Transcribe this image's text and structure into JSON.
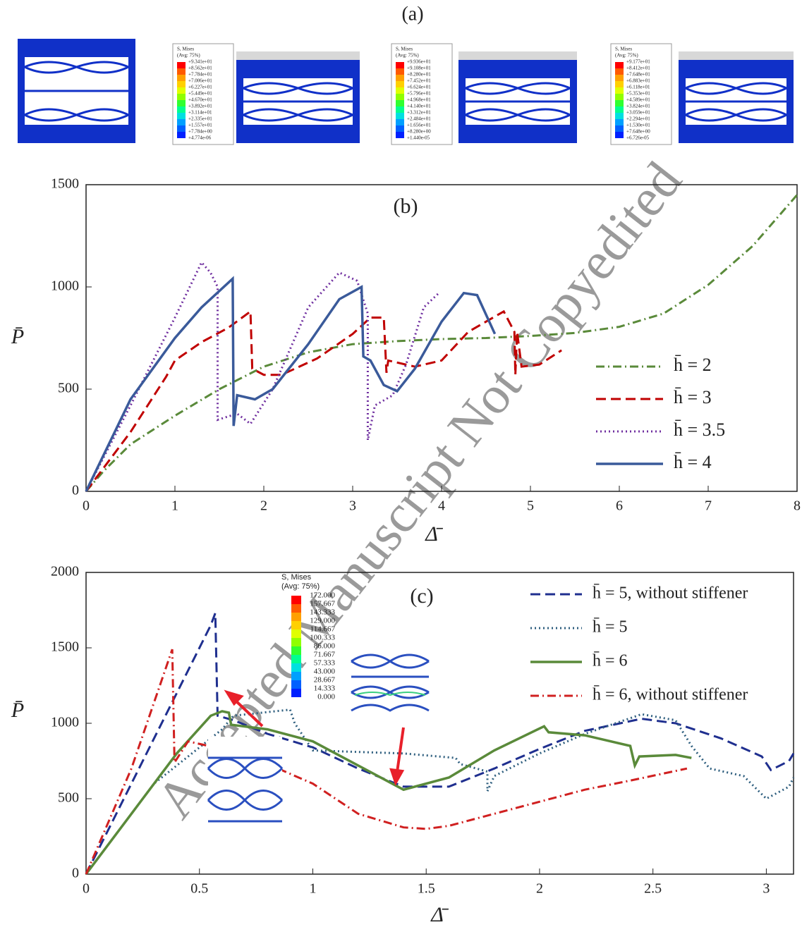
{
  "panel_a": {
    "label": "(a)",
    "legends": [
      {
        "title": "S, Mises",
        "subtitle": "(Avg: 75%)",
        "labels": [
          "+9.341e+01",
          "+8.562e+01",
          "+7.784e+01",
          "+7.006e+01",
          "+6.227e+01",
          "+5.449e+01",
          "+4.670e+01",
          "+3.892e+01",
          "+3.114e+01",
          "+2.335e+01",
          "+1.557e+01",
          "+7.784e+00",
          "+4.774e-06"
        ]
      },
      {
        "title": "S, Mises",
        "subtitle": "(Avg: 75%)",
        "labels": [
          "+9.936e+01",
          "+9.108e+01",
          "+8.280e+01",
          "+7.452e+01",
          "+6.624e+01",
          "+5.796e+01",
          "+4.968e+01",
          "+4.140e+01",
          "+3.312e+01",
          "+2.484e+01",
          "+1.656e+01",
          "+8.280e+00",
          "+1.440e-05"
        ]
      },
      {
        "title": "S, Mises",
        "subtitle": "(Avg: 75%)",
        "labels": [
          "+9.177e+01",
          "+8.412e+01",
          "+7.648e+01",
          "+6.883e+01",
          "+6.118e+01",
          "+5.353e+01",
          "+4.589e+01",
          "+3.824e+01",
          "+3.059e+01",
          "+2.294e+01",
          "+1.530e+01",
          "+7.648e+00",
          "+6.726e-05"
        ]
      }
    ]
  },
  "watermark": "Accepted Manuscript Not Copyedited",
  "chart_data": [
    {
      "type": "line",
      "title": "(b)",
      "x_label": "Δ̄",
      "y_label": "P̄",
      "xlim": [
        0,
        8
      ],
      "xticks": [
        0,
        1,
        2,
        3,
        4,
        5,
        6,
        7,
        8
      ],
      "ylim": [
        0,
        1500
      ],
      "yticks": [
        0,
        500,
        1000,
        1500
      ],
      "series": [
        {
          "name": "h̄ = 2",
          "color": "#5a8a3a",
          "dash": "dashdot",
          "x": [
            0,
            0.2,
            0.5,
            1,
            1.5,
            2,
            2.5,
            3,
            3.5,
            4,
            4.5,
            5,
            5.5,
            6,
            6.5,
            7,
            7.5,
            8
          ],
          "values": [
            0,
            100,
            230,
            370,
            500,
            610,
            680,
            720,
            735,
            745,
            750,
            760,
            775,
            805,
            870,
            1010,
            1200,
            1450
          ]
        },
        {
          "name": "h̄ = 3",
          "color": "#c00000",
          "dash": "dashed",
          "x": [
            0,
            0.5,
            0.9,
            1,
            1.3,
            1.6,
            1.85,
            1.87,
            2,
            2.2,
            2.6,
            3,
            3.2,
            3.35,
            3.38,
            3.4,
            3.7,
            4,
            4.3,
            4.7,
            4.82,
            4.83,
            4.85,
            4.9,
            5.1,
            5.35
          ],
          "values": [
            0,
            290,
            560,
            640,
            730,
            800,
            880,
            600,
            570,
            570,
            650,
            770,
            850,
            850,
            580,
            640,
            610,
            640,
            780,
            880,
            780,
            570,
            780,
            610,
            620,
            690
          ]
        },
        {
          "name": "h̄ = 3.5",
          "color": "#7030a0",
          "dash": "dotted",
          "x": [
            0,
            0.5,
            1,
            1.3,
            1.4,
            1.48,
            1.48,
            1.7,
            1.85,
            2.1,
            2.5,
            2.85,
            3.05,
            3.17,
            3.17,
            3.25,
            3.45,
            3.6,
            3.8,
            3.97
          ],
          "values": [
            0,
            420,
            850,
            1120,
            1070,
            1000,
            350,
            380,
            330,
            500,
            900,
            1070,
            1030,
            870,
            250,
            420,
            470,
            620,
            900,
            970
          ]
        },
        {
          "name": "h̄ = 4",
          "color": "#3a5a9a",
          "dash": "solid",
          "x": [
            0,
            0.5,
            1,
            1.3,
            1.65,
            1.66,
            1.7,
            1.9,
            2.1,
            2.5,
            2.85,
            3.1,
            3.12,
            3.2,
            3.35,
            3.5,
            3.7,
            4,
            4.25,
            4.4,
            4.6
          ],
          "values": [
            0,
            450,
            750,
            900,
            1040,
            320,
            470,
            450,
            500,
            720,
            940,
            1000,
            660,
            640,
            520,
            490,
            600,
            830,
            970,
            960,
            770
          ]
        }
      ]
    },
    {
      "type": "line",
      "title": "(c)",
      "x_label": "Δ̄",
      "y_label": "P̄",
      "xlim": [
        0,
        3.12
      ],
      "xticks": [
        0,
        0.5,
        1,
        1.5,
        2,
        2.5,
        3
      ],
      "ylim": [
        0,
        2000
      ],
      "yticks": [
        0,
        500,
        1000,
        1500,
        2000
      ],
      "inset_legend": {
        "title": "S, Mises",
        "subtitle": "(Avg: 75%)",
        "labels": [
          "172.000",
          "157.667",
          "143.333",
          "129.000",
          "114.667",
          "100.333",
          "86.000",
          "71.667",
          "57.333",
          "43.000",
          "28.667",
          "14.333",
          "0.000"
        ]
      },
      "series": [
        {
          "name": "h̄ = 5, without stiffener",
          "color": "#1f2f8f",
          "dash": "dashed",
          "x": [
            0,
            0.2,
            0.4,
            0.55,
            0.57,
            0.58,
            0.65,
            0.8,
            1,
            1.2,
            1.4,
            1.6,
            1.8,
            2,
            2.2,
            2.45,
            2.6,
            2.8,
            2.98,
            3.02,
            3.1,
            3.12
          ],
          "values": [
            0,
            600,
            1200,
            1650,
            1730,
            1050,
            1020,
            930,
            840,
            700,
            580,
            580,
            700,
            830,
            950,
            1030,
            1000,
            900,
            780,
            690,
            750,
            800
          ]
        },
        {
          "name": "h̄ = 5",
          "color": "#2f5f7f",
          "dash": "dotted",
          "x": [
            0,
            0.3,
            0.6,
            0.65,
            0.9,
            0.92,
            1,
            1.2,
            1.4,
            1.63,
            1.65,
            1.77,
            1.77,
            1.8,
            2,
            2.2,
            2.45,
            2.6,
            2.67,
            2.75,
            2.9,
            3,
            3.1,
            3.12
          ],
          "values": [
            0,
            600,
            960,
            1050,
            1090,
            1000,
            820,
            810,
            800,
            770,
            730,
            680,
            550,
            650,
            800,
            930,
            1060,
            1020,
            850,
            700,
            650,
            500,
            580,
            640
          ]
        },
        {
          "name": "h̄ = 6",
          "color": "#5a8a3a",
          "dash": "solid",
          "x": [
            0,
            0.2,
            0.4,
            0.55,
            0.6,
            0.63,
            0.64,
            0.8,
            1,
            1.2,
            1.4,
            1.6,
            1.8,
            2.02,
            2.04,
            2.2,
            2.4,
            2.42,
            2.44,
            2.6,
            2.67
          ],
          "values": [
            0,
            400,
            800,
            1050,
            1080,
            1070,
            990,
            960,
            880,
            720,
            560,
            640,
            820,
            980,
            940,
            920,
            850,
            720,
            780,
            790,
            770
          ]
        },
        {
          "name": "h̄ = 6, without stiffener",
          "color": "#d02020",
          "dash": "dashdot",
          "x": [
            0,
            0.2,
            0.38,
            0.39,
            0.45,
            0.6,
            0.8,
            1,
            1.2,
            1.4,
            1.5,
            1.6,
            1.8,
            2,
            2.2,
            2.4,
            2.65
          ],
          "values": [
            0,
            700,
            1490,
            740,
            880,
            830,
            730,
            600,
            400,
            310,
            300,
            320,
            400,
            480,
            560,
            620,
            700
          ]
        }
      ]
    }
  ]
}
